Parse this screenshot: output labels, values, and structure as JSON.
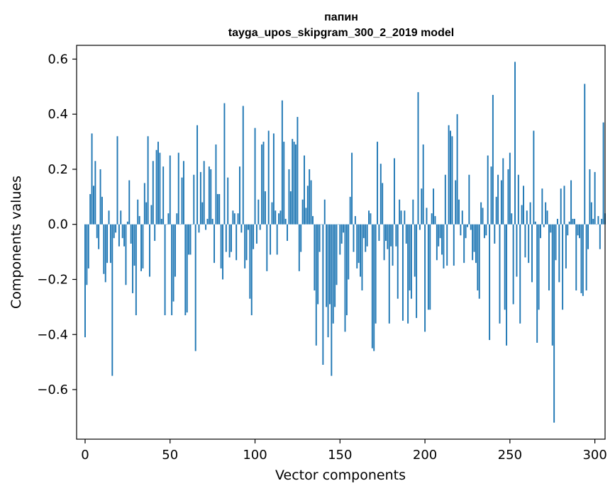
{
  "chart_data": {
    "type": "bar",
    "title": "папин",
    "subtitle": "tayga_upos_skipgram_300_2_2019 model",
    "xlabel": "Vector components",
    "ylabel": "Components values",
    "xlim": [
      -5,
      306
    ],
    "ylim": [
      -0.78,
      0.65
    ],
    "x_ticks": [
      0,
      50,
      100,
      150,
      200,
      250,
      300
    ],
    "y_ticks": [
      -0.6,
      -0.4,
      -0.2,
      0.0,
      0.2,
      0.4,
      0.6
    ],
    "x_tick_labels": [
      "0",
      "50",
      "100",
      "150",
      "200",
      "250",
      "300"
    ],
    "y_tick_labels": [
      "−0.6",
      "−0.4",
      "−0.2",
      "0.0",
      "0.2",
      "0.4",
      "0.6"
    ],
    "bar_color": "#1f77b4",
    "grid": false,
    "legend": "none",
    "values": [
      -0.41,
      -0.22,
      -0.16,
      0.11,
      0.33,
      0.14,
      0.23,
      -0.05,
      -0.09,
      0.2,
      0.1,
      -0.18,
      -0.21,
      -0.14,
      0.05,
      -0.14,
      -0.55,
      -0.05,
      -0.03,
      0.32,
      -0.08,
      0.05,
      -0.05,
      -0.08,
      -0.22,
      0.01,
      0.16,
      -0.07,
      -0.25,
      -0.15,
      -0.33,
      0.09,
      0.03,
      -0.17,
      -0.16,
      0.15,
      0.08,
      0.32,
      -0.19,
      0.07,
      0.23,
      -0.06,
      0.27,
      0.3,
      0.26,
      0.02,
      0.21,
      -0.33,
      0.0,
      0.04,
      0.25,
      -0.33,
      -0.28,
      -0.19,
      0.04,
      0.26,
      0.0,
      0.17,
      0.23,
      -0.33,
      -0.32,
      -0.11,
      -0.11,
      0.0,
      0.18,
      -0.46,
      0.36,
      -0.03,
      0.19,
      0.08,
      0.23,
      -0.02,
      0.02,
      0.21,
      0.2,
      0.02,
      -0.14,
      0.29,
      0.11,
      0.11,
      -0.16,
      -0.2,
      0.44,
      -0.1,
      0.17,
      -0.12,
      -0.1,
      0.05,
      0.04,
      -0.13,
      0.04,
      0.21,
      -0.03,
      0.43,
      -0.16,
      -0.13,
      -0.02,
      -0.27,
      -0.33,
      -0.09,
      0.35,
      -0.07,
      0.09,
      -0.02,
      0.29,
      0.3,
      0.12,
      -0.17,
      0.34,
      -0.11,
      0.08,
      0.33,
      0.05,
      -0.11,
      0.04,
      0.05,
      0.45,
      0.3,
      0.02,
      -0.06,
      0.2,
      0.12,
      0.31,
      0.3,
      0.29,
      0.39,
      -0.17,
      -0.1,
      0.09,
      0.25,
      0.06,
      0.14,
      0.2,
      0.16,
      0.03,
      -0.24,
      -0.44,
      -0.29,
      -0.1,
      0.0,
      -0.51,
      0.09,
      -0.3,
      -0.41,
      -0.29,
      -0.55,
      -0.36,
      -0.3,
      -0.22,
      0.0,
      -0.11,
      -0.07,
      -0.03,
      -0.39,
      -0.33,
      -0.2,
      0.1,
      0.26,
      -0.1,
      0.03,
      -0.16,
      -0.14,
      -0.19,
      -0.24,
      -0.05,
      -0.1,
      -0.08,
      0.05,
      0.04,
      -0.45,
      -0.46,
      -0.36,
      0.3,
      -0.06,
      0.22,
      0.15,
      -0.13,
      -0.06,
      -0.09,
      -0.36,
      -0.08,
      -0.15,
      0.24,
      -0.08,
      -0.27,
      0.09,
      0.05,
      -0.35,
      0.05,
      -0.07,
      -0.36,
      -0.24,
      -0.27,
      0.09,
      -0.19,
      -0.34,
      0.48,
      -0.02,
      0.13,
      0.29,
      -0.39,
      0.06,
      -0.31,
      -0.31,
      0.04,
      0.13,
      0.03,
      -0.13,
      -0.08,
      -0.05,
      -0.11,
      -0.16,
      0.18,
      -0.15,
      0.36,
      0.34,
      0.32,
      -0.15,
      0.16,
      0.4,
      0.09,
      -0.04,
      0.05,
      -0.14,
      -0.05,
      -0.01,
      0.18,
      -0.02,
      -0.13,
      -0.1,
      -0.14,
      -0.24,
      -0.27,
      0.08,
      0.06,
      -0.05,
      -0.04,
      0.25,
      -0.42,
      0.21,
      0.47,
      -0.07,
      0.1,
      0.18,
      -0.36,
      0.16,
      0.24,
      -0.31,
      -0.44,
      0.2,
      0.26,
      0.04,
      -0.29,
      0.59,
      -0.19,
      0.18,
      -0.36,
      0.07,
      0.14,
      -0.12,
      0.05,
      -0.14,
      0.08,
      -0.21,
      0.34,
      0.01,
      -0.43,
      -0.31,
      -0.05,
      0.13,
      -0.01,
      0.08,
      0.05,
      -0.24,
      -0.03,
      -0.44,
      -0.72,
      -0.13,
      0.02,
      -0.21,
      0.13,
      -0.31,
      0.14,
      -0.16,
      -0.04,
      0.01,
      0.16,
      0.02,
      0.02,
      -0.24,
      -0.04,
      -0.05,
      -0.25,
      -0.26,
      0.51,
      -0.24,
      -0.09,
      0.2,
      0.08,
      0.02,
      0.19,
      0.0,
      0.03,
      -0.09,
      0.02,
      0.37,
      0.04
    ]
  }
}
